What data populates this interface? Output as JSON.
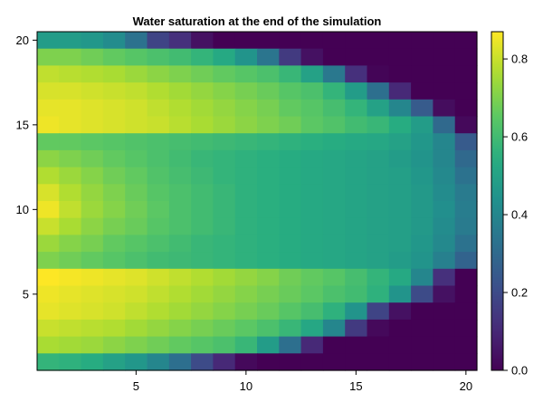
{
  "chart_data": {
    "type": "heatmap",
    "title": "Water saturation at the end of the simulation",
    "xlabel": "",
    "ylabel": "",
    "x_range": [
      0.5,
      20.5
    ],
    "y_range": [
      0.5,
      20.5
    ],
    "x_ticks": [
      5,
      10,
      15,
      20
    ],
    "y_ticks": [
      5,
      10,
      15,
      20
    ],
    "colormap": "viridis",
    "colorbar": {
      "min": 0.0,
      "max": 0.87,
      "ticks": [
        "0.0",
        "0.2",
        "0.4",
        "0.6",
        "0.8"
      ]
    },
    "grid": false,
    "nx": 20,
    "ny": 20,
    "values_row_order": "top-to-bottom (y=20 down to y=1), columns x=1..20",
    "values": [
      [
        0.48,
        0.48,
        0.46,
        0.42,
        0.33,
        0.18,
        0.12,
        0.04,
        0.0,
        0.0,
        0.0,
        0.0,
        0.0,
        0.0,
        0.0,
        0.0,
        0.0,
        0.0,
        0.0,
        0.0
      ],
      [
        0.7,
        0.7,
        0.68,
        0.66,
        0.64,
        0.62,
        0.6,
        0.57,
        0.53,
        0.45,
        0.34,
        0.15,
        0.04,
        0.0,
        0.0,
        0.0,
        0.0,
        0.0,
        0.0,
        0.0
      ],
      [
        0.79,
        0.78,
        0.77,
        0.76,
        0.74,
        0.72,
        0.7,
        0.68,
        0.66,
        0.64,
        0.62,
        0.58,
        0.5,
        0.35,
        0.12,
        0.01,
        0.0,
        0.0,
        0.0,
        0.0
      ],
      [
        0.82,
        0.82,
        0.81,
        0.8,
        0.79,
        0.77,
        0.75,
        0.73,
        0.71,
        0.69,
        0.67,
        0.64,
        0.62,
        0.57,
        0.48,
        0.32,
        0.1,
        0.0,
        0.0,
        0.0
      ],
      [
        0.84,
        0.84,
        0.83,
        0.82,
        0.81,
        0.79,
        0.77,
        0.75,
        0.73,
        0.71,
        0.69,
        0.66,
        0.64,
        0.61,
        0.57,
        0.5,
        0.4,
        0.25,
        0.03,
        0.0
      ],
      [
        0.85,
        0.84,
        0.83,
        0.82,
        0.81,
        0.8,
        0.78,
        0.76,
        0.74,
        0.72,
        0.7,
        0.68,
        0.65,
        0.63,
        0.6,
        0.58,
        0.54,
        0.48,
        0.3,
        0.02
      ],
      [
        0.66,
        0.66,
        0.65,
        0.64,
        0.63,
        0.62,
        0.61,
        0.6,
        0.59,
        0.58,
        0.57,
        0.56,
        0.55,
        0.54,
        0.53,
        0.52,
        0.5,
        0.46,
        0.4,
        0.25
      ],
      [
        0.72,
        0.7,
        0.68,
        0.66,
        0.64,
        0.62,
        0.6,
        0.58,
        0.57,
        0.56,
        0.55,
        0.54,
        0.53,
        0.52,
        0.51,
        0.5,
        0.48,
        0.45,
        0.4,
        0.3
      ],
      [
        0.77,
        0.74,
        0.71,
        0.68,
        0.66,
        0.63,
        0.61,
        0.59,
        0.57,
        0.56,
        0.55,
        0.54,
        0.53,
        0.52,
        0.51,
        0.5,
        0.49,
        0.46,
        0.41,
        0.33
      ],
      [
        0.82,
        0.77,
        0.73,
        0.7,
        0.67,
        0.64,
        0.62,
        0.6,
        0.58,
        0.56,
        0.55,
        0.54,
        0.53,
        0.52,
        0.51,
        0.5,
        0.49,
        0.47,
        0.42,
        0.36
      ],
      [
        0.85,
        0.79,
        0.74,
        0.71,
        0.68,
        0.65,
        0.62,
        0.6,
        0.58,
        0.56,
        0.55,
        0.54,
        0.53,
        0.52,
        0.51,
        0.5,
        0.49,
        0.47,
        0.43,
        0.37
      ],
      [
        0.8,
        0.76,
        0.72,
        0.69,
        0.67,
        0.64,
        0.62,
        0.6,
        0.58,
        0.56,
        0.55,
        0.54,
        0.53,
        0.52,
        0.51,
        0.5,
        0.49,
        0.47,
        0.42,
        0.36
      ],
      [
        0.74,
        0.71,
        0.69,
        0.66,
        0.64,
        0.62,
        0.6,
        0.58,
        0.57,
        0.56,
        0.55,
        0.54,
        0.53,
        0.52,
        0.51,
        0.5,
        0.49,
        0.46,
        0.41,
        0.33
      ],
      [
        0.7,
        0.68,
        0.66,
        0.64,
        0.62,
        0.6,
        0.59,
        0.58,
        0.57,
        0.56,
        0.55,
        0.54,
        0.53,
        0.52,
        0.51,
        0.5,
        0.48,
        0.45,
        0.38,
        0.28
      ],
      [
        0.87,
        0.86,
        0.85,
        0.84,
        0.83,
        0.81,
        0.79,
        0.77,
        0.75,
        0.73,
        0.71,
        0.68,
        0.66,
        0.64,
        0.61,
        0.57,
        0.53,
        0.4,
        0.12,
        0.0
      ],
      [
        0.85,
        0.84,
        0.83,
        0.82,
        0.81,
        0.79,
        0.77,
        0.75,
        0.73,
        0.71,
        0.69,
        0.67,
        0.65,
        0.62,
        0.6,
        0.56,
        0.45,
        0.2,
        0.04,
        0.0
      ],
      [
        0.84,
        0.83,
        0.82,
        0.81,
        0.79,
        0.77,
        0.75,
        0.73,
        0.71,
        0.69,
        0.67,
        0.64,
        0.61,
        0.56,
        0.45,
        0.18,
        0.04,
        0.0,
        0.0,
        0.0
      ],
      [
        0.8,
        0.79,
        0.78,
        0.77,
        0.75,
        0.73,
        0.71,
        0.69,
        0.67,
        0.65,
        0.62,
        0.58,
        0.52,
        0.4,
        0.15,
        0.02,
        0.0,
        0.0,
        0.0,
        0.0
      ],
      [
        0.76,
        0.75,
        0.74,
        0.72,
        0.7,
        0.68,
        0.66,
        0.64,
        0.62,
        0.58,
        0.48,
        0.32,
        0.1,
        0.0,
        0.0,
        0.0,
        0.0,
        0.0,
        0.0,
        0.0
      ],
      [
        0.57,
        0.56,
        0.54,
        0.5,
        0.46,
        0.4,
        0.32,
        0.2,
        0.1,
        0.02,
        0.0,
        0.0,
        0.0,
        0.0,
        0.0,
        0.0,
        0.0,
        0.0,
        0.0,
        0.0
      ]
    ]
  }
}
